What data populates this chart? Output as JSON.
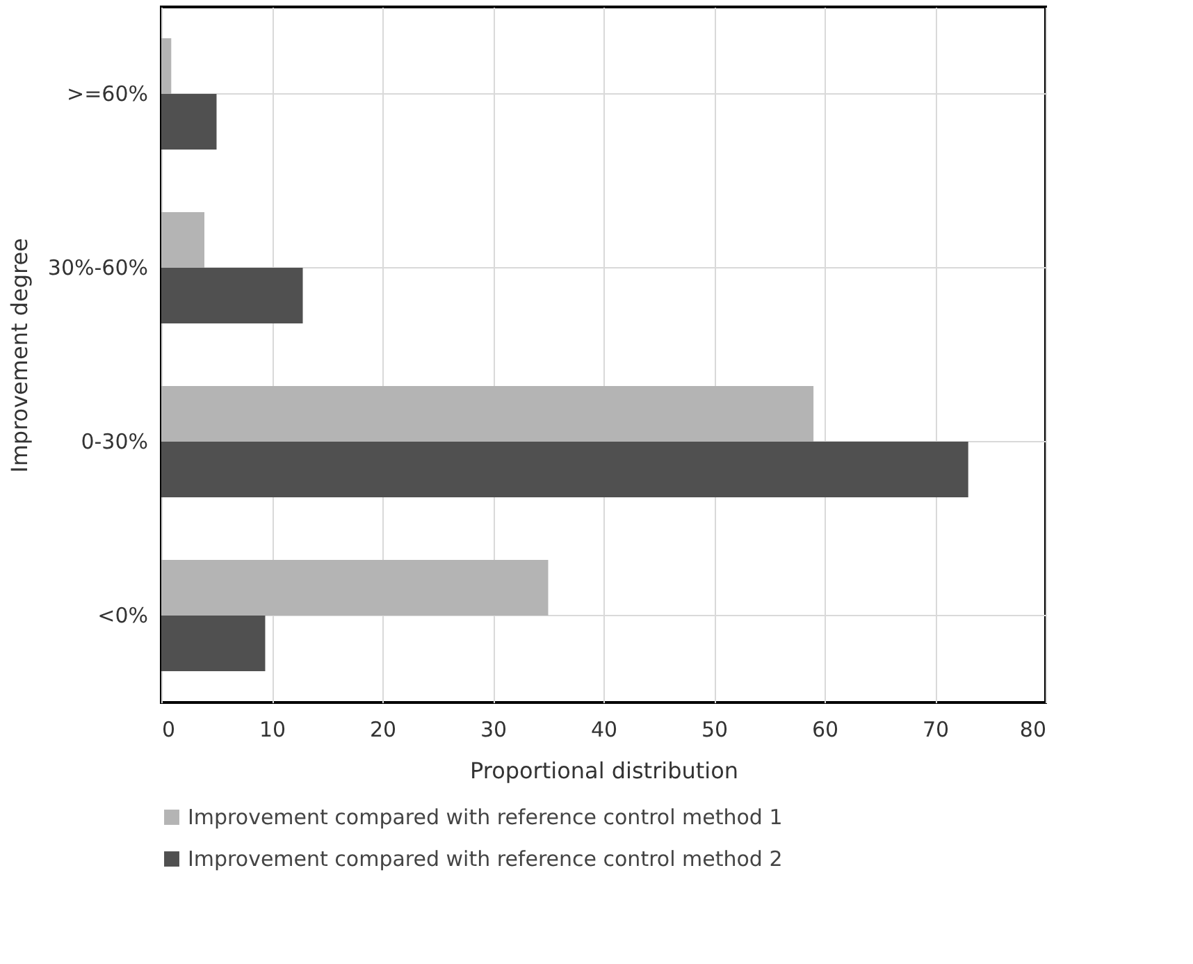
{
  "chart_data": {
    "type": "bar",
    "orientation": "horizontal",
    "xlabel": "Proportional distribution",
    "ylabel": "Improvement degree",
    "categories": [
      ">=60%",
      "30%-60%",
      "0-30%",
      "<0%"
    ],
    "series": [
      {
        "name": "Improvement compared with reference control method 1",
        "color": "#b4b4b4",
        "values": [
          0.9,
          3.9,
          59,
          35
        ]
      },
      {
        "name": "Improvement compared with reference control method 2",
        "color": "#505050",
        "values": [
          5,
          12.8,
          73,
          9.4
        ]
      }
    ],
    "xlim": [
      0,
      80
    ],
    "xticks": [
      0,
      10,
      20,
      30,
      40,
      50,
      60,
      70,
      80
    ],
    "grid": true,
    "legend": "bottom"
  }
}
